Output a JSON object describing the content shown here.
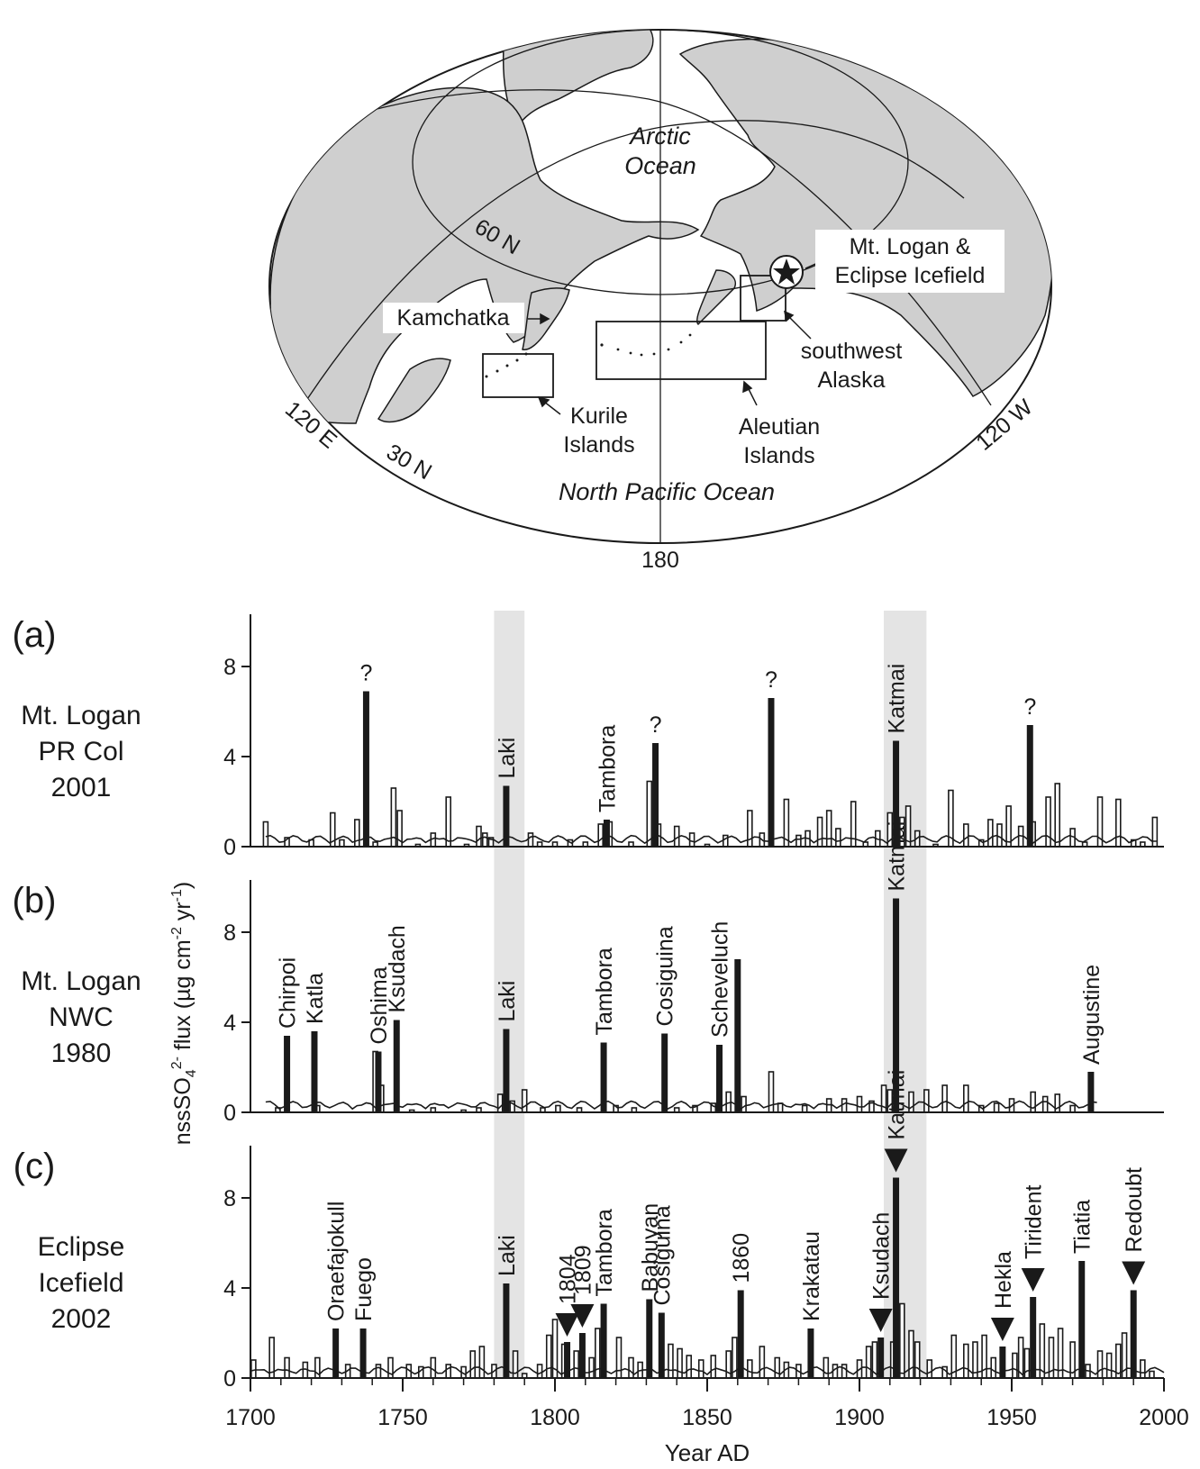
{
  "map": {
    "ocean_arctic_line1": "Arctic",
    "ocean_arctic_line2": "Ocean",
    "ocean_pacific": "North Pacific Ocean",
    "lat_60": "60 N",
    "lat_30": "30 N",
    "lon_120e": "120 E",
    "lon_120w": "120 W",
    "lon_180": "180",
    "site_line1": "Mt. Logan &",
    "site_line2": "Eclipse Icefield",
    "kamchatka": "Kamchatka",
    "kurile_line1": "Kurile",
    "kurile_line2": "Islands",
    "aleutian_line1": "Aleutian",
    "aleutian_line2": "Islands",
    "swak_line1": "southwest",
    "swak_line2": "Alaska",
    "colors": {
      "land": "#cfcfcf",
      "outline": "#1a1a1a"
    }
  },
  "chart_data": {
    "type": "bar",
    "xlabel": "Year AD",
    "ylabel": "nssSO4 2- flux (µg cm-2 yr-1)",
    "xlim": [
      1700,
      2000
    ],
    "xticks": [
      1700,
      1750,
      1800,
      1850,
      1900,
      1950,
      2000
    ],
    "shaded_spans": [
      [
        1780,
        1790
      ],
      [
        1908,
        1922
      ]
    ],
    "panels": [
      {
        "letter": "(a)",
        "site_line1": "Mt. Logan",
        "site_line2": "PR Col",
        "site_line3": "2001",
        "ylim": [
          0,
          10
        ],
        "yticks": [
          0,
          4,
          8
        ],
        "span": [
          1705,
          1998
        ],
        "background": [
          [
            1705,
            1.1
          ],
          [
            1712,
            0.4
          ],
          [
            1720,
            0.3
          ],
          [
            1727,
            1.5
          ],
          [
            1730,
            0.3
          ],
          [
            1735,
            1.2
          ],
          [
            1741,
            0.2
          ],
          [
            1747,
            2.6
          ],
          [
            1749,
            1.6
          ],
          [
            1755,
            0.1
          ],
          [
            1760,
            0.6
          ],
          [
            1765,
            2.2
          ],
          [
            1771,
            0.1
          ],
          [
            1775,
            0.9
          ],
          [
            1777,
            0.6
          ],
          [
            1779,
            0.4
          ],
          [
            1792,
            0.6
          ],
          [
            1795,
            0.2
          ],
          [
            1800,
            0.2
          ],
          [
            1805,
            0.3
          ],
          [
            1810,
            0.2
          ],
          [
            1815,
            1.0
          ],
          [
            1818,
            1.1
          ],
          [
            1825,
            0.2
          ],
          [
            1831,
            2.9
          ],
          [
            1834,
            1.0
          ],
          [
            1840,
            0.9
          ],
          [
            1845,
            0.6
          ],
          [
            1850,
            0.1
          ],
          [
            1856,
            0.5
          ],
          [
            1864,
            1.6
          ],
          [
            1868,
            0.6
          ],
          [
            1876,
            2.1
          ],
          [
            1880,
            0.5
          ],
          [
            1883,
            0.7
          ],
          [
            1887,
            1.3
          ],
          [
            1890,
            1.6
          ],
          [
            1893,
            0.8
          ],
          [
            1898,
            2.0
          ],
          [
            1902,
            0.2
          ],
          [
            1906,
            0.7
          ],
          [
            1910,
            1.5
          ],
          [
            1914,
            1.3
          ],
          [
            1916,
            1.8
          ],
          [
            1919,
            0.7
          ],
          [
            1925,
            0.1
          ],
          [
            1930,
            2.5
          ],
          [
            1935,
            1.0
          ],
          [
            1940,
            0.3
          ],
          [
            1943,
            1.2
          ],
          [
            1946,
            1.0
          ],
          [
            1949,
            1.8
          ],
          [
            1953,
            0.9
          ],
          [
            1957,
            1.1
          ],
          [
            1962,
            2.2
          ],
          [
            1965,
            2.8
          ],
          [
            1970,
            0.8
          ],
          [
            1974,
            0.2
          ],
          [
            1979,
            2.2
          ],
          [
            1985,
            2.1
          ],
          [
            1990,
            0.3
          ],
          [
            1993,
            0.2
          ],
          [
            1997,
            1.3
          ]
        ],
        "events": [
          {
            "label": "?",
            "x": 1738,
            "y": 6.9
          },
          {
            "label": "Laki",
            "x": 1784,
            "y": 2.7
          },
          {
            "label": "Tambora",
            "x": 1817,
            "y": 1.2
          },
          {
            "label": "?",
            "x": 1833,
            "y": 4.6
          },
          {
            "label": "?",
            "x": 1871,
            "y": 6.6
          },
          {
            "label": "Katmai",
            "x": 1912,
            "y": 4.7
          },
          {
            "label": "?",
            "x": 1956,
            "y": 5.4
          }
        ]
      },
      {
        "letter": "(b)",
        "site_line1": "Mt. Logan",
        "site_line2": "NWC",
        "site_line3": "1980",
        "ylim": [
          0,
          10
        ],
        "yticks": [
          0,
          4,
          8
        ],
        "span": [
          1705,
          1978
        ],
        "background": [
          [
            1709,
            0.2
          ],
          [
            1722,
            0.3
          ],
          [
            1741,
            2.7
          ],
          [
            1743,
            1.2
          ],
          [
            1753,
            0.1
          ],
          [
            1760,
            0.2
          ],
          [
            1770,
            0.1
          ],
          [
            1775,
            0.2
          ],
          [
            1782,
            0.8
          ],
          [
            1786,
            0.5
          ],
          [
            1790,
            1.0
          ],
          [
            1796,
            0.2
          ],
          [
            1801,
            0.3
          ],
          [
            1808,
            0.2
          ],
          [
            1820,
            0.3
          ],
          [
            1826,
            0.2
          ],
          [
            1840,
            0.2
          ],
          [
            1846,
            0.3
          ],
          [
            1852,
            0.4
          ],
          [
            1857,
            0.9
          ],
          [
            1862,
            0.7
          ],
          [
            1871,
            1.8
          ],
          [
            1874,
            0.4
          ],
          [
            1882,
            0.3
          ],
          [
            1890,
            0.6
          ],
          [
            1895,
            0.6
          ],
          [
            1900,
            0.7
          ],
          [
            1904,
            0.5
          ],
          [
            1908,
            1.2
          ],
          [
            1910,
            1.0
          ],
          [
            1917,
            0.9
          ],
          [
            1922,
            1.0
          ],
          [
            1928,
            1.2
          ],
          [
            1935,
            1.2
          ],
          [
            1940,
            0.3
          ],
          [
            1945,
            0.4
          ],
          [
            1950,
            0.6
          ],
          [
            1957,
            0.9
          ],
          [
            1961,
            0.7
          ],
          [
            1965,
            0.8
          ],
          [
            1970,
            0.3
          ]
        ],
        "events": [
          {
            "label": "Chirpoi",
            "x": 1712,
            "y": 3.4
          },
          {
            "label": "Katla",
            "x": 1721,
            "y": 3.6
          },
          {
            "label": "Oshima",
            "x": 1742,
            "y": 2.7
          },
          {
            "label": "Ksudach",
            "x": 1748,
            "y": 4.1
          },
          {
            "label": "Laki",
            "x": 1784,
            "y": 3.7
          },
          {
            "label": "Tambora",
            "x": 1816,
            "y": 3.1
          },
          {
            "label": "Cosiguina",
            "x": 1836,
            "y": 3.5
          },
          {
            "label": "Scheveluch",
            "x": 1854,
            "y": 3.0
          },
          {
            "label": "",
            "x": 1860,
            "y": 6.8
          },
          {
            "label": "Katmai",
            "x": 1912,
            "y": 9.5
          },
          {
            "label": "Augustine",
            "x": 1976,
            "y": 1.8
          }
        ]
      },
      {
        "letter": "(c)",
        "site_line1": "Eclipse",
        "site_line2": "Icefield",
        "site_line3": "2002",
        "ylim": [
          0,
          10
        ],
        "yticks": [
          0,
          4,
          8
        ],
        "span": [
          1700,
          2000
        ],
        "background": [
          [
            1701,
            0.8
          ],
          [
            1707,
            1.8
          ],
          [
            1712,
            0.9
          ],
          [
            1718,
            0.7
          ],
          [
            1722,
            0.9
          ],
          [
            1732,
            0.6
          ],
          [
            1742,
            0.6
          ],
          [
            1746,
            0.9
          ],
          [
            1752,
            0.6
          ],
          [
            1756,
            0.5
          ],
          [
            1760,
            0.9
          ],
          [
            1765,
            0.6
          ],
          [
            1770,
            0.5
          ],
          [
            1773,
            1.2
          ],
          [
            1776,
            1.4
          ],
          [
            1780,
            0.6
          ],
          [
            1787,
            1.2
          ],
          [
            1790,
            0.2
          ],
          [
            1795,
            0.6
          ],
          [
            1798,
            1.9
          ],
          [
            1800,
            2.6
          ],
          [
            1803,
            1.5
          ],
          [
            1807,
            1.2
          ],
          [
            1812,
            0.9
          ],
          [
            1814,
            2.2
          ],
          [
            1821,
            1.8
          ],
          [
            1825,
            0.9
          ],
          [
            1828,
            0.7
          ],
          [
            1838,
            1.5
          ],
          [
            1841,
            1.3
          ],
          [
            1844,
            1.0
          ],
          [
            1848,
            0.8
          ],
          [
            1852,
            1.0
          ],
          [
            1857,
            1.2
          ],
          [
            1859,
            1.8
          ],
          [
            1864,
            0.8
          ],
          [
            1868,
            1.4
          ],
          [
            1873,
            0.9
          ],
          [
            1876,
            0.7
          ],
          [
            1880,
            0.6
          ],
          [
            1889,
            0.9
          ],
          [
            1892,
            0.6
          ],
          [
            1895,
            0.6
          ],
          [
            1900,
            0.8
          ],
          [
            1903,
            1.4
          ],
          [
            1905,
            1.6
          ],
          [
            1911,
            1.6
          ],
          [
            1914,
            3.3
          ],
          [
            1917,
            2.1
          ],
          [
            1919,
            1.6
          ],
          [
            1923,
            0.8
          ],
          [
            1928,
            0.5
          ],
          [
            1931,
            1.9
          ],
          [
            1935,
            1.5
          ],
          [
            1938,
            1.6
          ],
          [
            1941,
            1.9
          ],
          [
            1944,
            0.9
          ],
          [
            1951,
            1.1
          ],
          [
            1953,
            1.8
          ],
          [
            1955,
            1.3
          ],
          [
            1960,
            2.4
          ],
          [
            1963,
            1.8
          ],
          [
            1966,
            2.2
          ],
          [
            1970,
            1.6
          ],
          [
            1975,
            0.6
          ],
          [
            1979,
            1.2
          ],
          [
            1982,
            1.1
          ],
          [
            1985,
            1.5
          ],
          [
            1987,
            2.0
          ],
          [
            1993,
            0.8
          ],
          [
            1996,
            0.3
          ]
        ],
        "events": [
          {
            "label": "Oraefajokull",
            "x": 1728,
            "y": 2.2
          },
          {
            "label": "Fuego",
            "x": 1737,
            "y": 2.2
          },
          {
            "label": "Laki",
            "x": 1784,
            "y": 4.2
          },
          {
            "label": "1804",
            "x": 1804,
            "y": 1.6
          },
          {
            "label": "1809",
            "x": 1809,
            "y": 2.0
          },
          {
            "label": "Tambora",
            "x": 1816,
            "y": 3.3
          },
          {
            "label": "Babuyan",
            "x": 1831,
            "y": 3.5
          },
          {
            "label": "Cosiguina",
            "x": 1835,
            "y": 2.9
          },
          {
            "label": "1860",
            "x": 1861,
            "y": 3.9
          },
          {
            "label": "Krakatau",
            "x": 1884,
            "y": 2.2
          },
          {
            "label": "Ksudach",
            "x": 1907,
            "y": 1.8
          },
          {
            "label": "Katmai",
            "x": 1912,
            "y": 8.9
          },
          {
            "label": "Hekla",
            "x": 1947,
            "y": 1.4
          },
          {
            "label": "Tirident",
            "x": 1957,
            "y": 3.6
          },
          {
            "label": "Tiatia",
            "x": 1973,
            "y": 5.2
          },
          {
            "label": "Redoubt",
            "x": 1990,
            "y": 3.9
          }
        ],
        "arrows": [
          1804,
          1809,
          1907,
          1912,
          1947,
          1957,
          1990
        ]
      }
    ]
  }
}
